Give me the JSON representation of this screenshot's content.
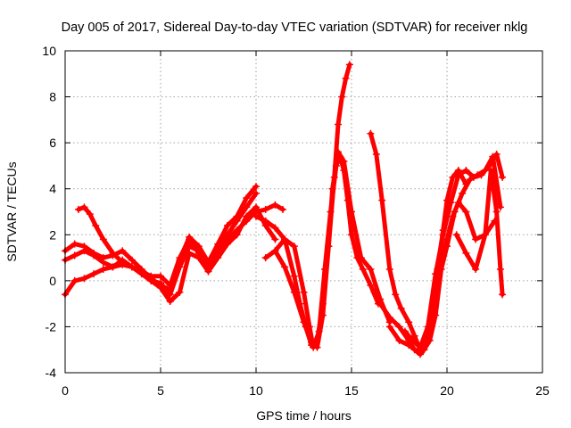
{
  "chart_data": {
    "type": "scatter",
    "title": "Day 005 of 2017, Sidereal Day-to-day VTEC variation (SDTVAR) for receiver nklg",
    "xlabel": "GPS time / hours",
    "ylabel": "SDTVAR / TECUs",
    "xlim": [
      0,
      25
    ],
    "ylim": [
      -4,
      10
    ],
    "x_ticks": [
      "0",
      "5",
      "10",
      "15",
      "20",
      "25"
    ],
    "y_ticks": [
      "-4",
      "-2",
      "0",
      "2",
      "4",
      "6",
      "8",
      "10"
    ],
    "grid": true,
    "marker": "plus",
    "series_color": "#ff0000",
    "series": [
      {
        "x": [
          0.0,
          0.5,
          1.0,
          1.5,
          2.0,
          2.5,
          3.0,
          3.5,
          4.0,
          4.5,
          5.0,
          5.5,
          6.0,
          6.5,
          7.0,
          7.5,
          8.0,
          8.5,
          9.0,
          9.5,
          10.0
        ],
        "y": [
          1.3,
          1.6,
          1.5,
          1.2,
          1.0,
          1.1,
          1.3,
          0.9,
          0.5,
          0.1,
          -0.2,
          -0.4,
          0.9,
          1.9,
          1.5,
          0.8,
          1.6,
          2.4,
          2.8,
          3.6,
          4.1
        ]
      },
      {
        "x": [
          0.0,
          0.5,
          1.0,
          1.5,
          2.0,
          2.5,
          3.0,
          3.5,
          4.0,
          4.5,
          5.0,
          5.5,
          6.0,
          6.5,
          7.0,
          7.5,
          8.0,
          8.5,
          9.0,
          9.5,
          10.0
        ],
        "y": [
          0.9,
          1.1,
          1.3,
          1.1,
          0.8,
          0.6,
          0.9,
          0.6,
          0.4,
          0.0,
          -0.1,
          -0.6,
          0.6,
          1.5,
          1.3,
          0.5,
          1.3,
          2.0,
          2.6,
          3.2,
          3.8
        ]
      },
      {
        "x": [
          0.0,
          0.5,
          1.0,
          1.5,
          2.0,
          2.5,
          3.0,
          3.5,
          4.0,
          4.5,
          5.0,
          5.5,
          6.0,
          6.5,
          7.0,
          7.5,
          8.0,
          8.5,
          9.0,
          9.5,
          10.0,
          10.5,
          11.0
        ],
        "y": [
          -0.6,
          0.0,
          0.1,
          0.3,
          0.5,
          0.6,
          0.7,
          0.6,
          0.3,
          0.0,
          -0.3,
          -0.9,
          -0.5,
          1.2,
          1.0,
          0.4,
          1.0,
          1.6,
          2.0,
          2.8,
          3.2,
          2.4,
          1.8
        ]
      },
      {
        "x": [
          0.7,
          1.0,
          1.3,
          1.6,
          2.0,
          2.5,
          3.0,
          3.5,
          4.0,
          4.5,
          5.0,
          5.5,
          6.0,
          6.5,
          7.0,
          7.5,
          8.0,
          8.5,
          9.0,
          9.5,
          10.0,
          10.5,
          11.0,
          11.4
        ],
        "y": [
          3.1,
          3.2,
          2.9,
          2.4,
          1.8,
          1.2,
          0.8,
          0.6,
          0.4,
          0.2,
          0.2,
          -0.2,
          1.0,
          1.8,
          1.2,
          0.6,
          1.2,
          1.8,
          2.2,
          2.6,
          3.0,
          3.1,
          3.3,
          3.1
        ]
      },
      {
        "x": [
          10.0,
          10.5,
          11.0,
          11.5,
          12.0,
          12.3,
          12.6,
          12.9,
          13.2,
          13.5,
          13.8,
          14.1,
          14.3,
          14.5,
          14.7,
          14.9
        ],
        "y": [
          2.8,
          2.6,
          2.3,
          1.8,
          0.2,
          -1.0,
          -2.0,
          -2.8,
          -2.6,
          -1.0,
          1.5,
          4.5,
          6.8,
          8.0,
          8.8,
          9.4
        ]
      },
      {
        "x": [
          10.5,
          11.0,
          11.5,
          12.0,
          12.5,
          12.8,
          13.0,
          13.3,
          13.6,
          13.9,
          14.2,
          14.4,
          14.6,
          14.8,
          15.0,
          15.3,
          15.6,
          16.0,
          16.4
        ],
        "y": [
          1.0,
          1.3,
          1.8,
          1.5,
          -0.5,
          -2.0,
          -2.9,
          -2.2,
          0.5,
          3.0,
          5.0,
          5.4,
          4.8,
          3.5,
          2.0,
          1.0,
          0.5,
          -0.2,
          -1.0
        ]
      },
      {
        "x": [
          11.0,
          11.5,
          12.0,
          12.5,
          12.9,
          13.2,
          13.5,
          13.8,
          14.0,
          14.3,
          14.6,
          15.0,
          15.5,
          16.0,
          16.5,
          17.0
        ],
        "y": [
          1.3,
          0.6,
          -0.5,
          -1.8,
          -2.7,
          -2.9,
          -1.5,
          1.5,
          4.0,
          5.6,
          5.2,
          3.0,
          1.0,
          0.5,
          -0.8,
          -1.8
        ]
      },
      {
        "x": [
          16.0,
          16.3,
          16.6,
          17.0,
          17.3,
          17.6,
          18.0,
          18.3,
          18.6,
          18.9,
          19.2,
          19.5,
          19.8,
          20.0,
          20.3,
          20.6,
          21.0
        ],
        "y": [
          6.4,
          5.5,
          3.5,
          0.5,
          -0.6,
          -1.2,
          -1.8,
          -2.4,
          -3.0,
          -2.5,
          -1.5,
          0.5,
          2.2,
          3.5,
          4.5,
          4.8,
          4.2
        ]
      },
      {
        "x": [
          16.2,
          16.5,
          17.0,
          17.5,
          18.0,
          18.3,
          18.6,
          18.8,
          19.0,
          19.3,
          19.6,
          20.0,
          20.3,
          20.6,
          21.0,
          21.5,
          22.0,
          22.5
        ],
        "y": [
          -0.5,
          -1.0,
          -1.6,
          -2.0,
          -2.6,
          -3.0,
          -3.2,
          -3.0,
          -2.2,
          -0.8,
          0.5,
          1.8,
          2.8,
          3.4,
          3.0,
          1.8,
          2.0,
          2.6
        ]
      },
      {
        "x": [
          17.0,
          17.5,
          18.0,
          18.5,
          18.8,
          19.1,
          19.4,
          19.7,
          20.0,
          20.4,
          20.8,
          21.2,
          21.6,
          22.0,
          22.4,
          22.8
        ],
        "y": [
          -2.0,
          -2.6,
          -2.8,
          -3.1,
          -3.0,
          -2.6,
          -1.5,
          0.5,
          1.5,
          3.0,
          3.8,
          4.4,
          4.6,
          4.8,
          5.4,
          3.2
        ]
      },
      {
        "x": [
          17.8,
          18.2,
          18.6,
          19.0,
          19.4,
          19.8,
          20.2,
          20.6,
          21.0,
          21.4,
          21.8,
          22.2,
          22.6,
          22.9
        ],
        "y": [
          -2.2,
          -2.6,
          -2.9,
          -2.0,
          0.3,
          2.0,
          3.4,
          4.6,
          4.8,
          4.5,
          4.6,
          5.0,
          5.5,
          4.5
        ]
      },
      {
        "x": [
          20.5,
          21.0,
          21.5,
          22.0,
          22.3,
          22.6,
          22.8,
          22.9
        ],
        "y": [
          2.0,
          1.2,
          0.5,
          2.0,
          4.8,
          3.0,
          0.5,
          -0.6
        ]
      }
    ]
  }
}
